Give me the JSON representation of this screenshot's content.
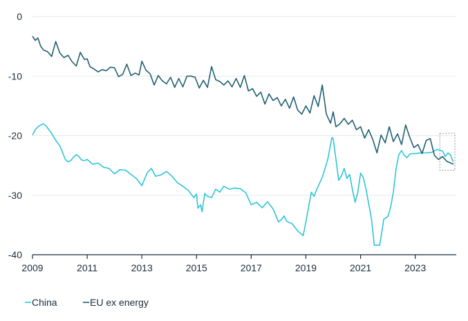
{
  "chart_data": {
    "type": "line",
    "title": "",
    "xlabel": "",
    "ylabel": "",
    "xlim": [
      2009,
      2024.5
    ],
    "ylim": [
      -40,
      0
    ],
    "grid": true,
    "legend": "bottom-left",
    "x_ticks": [
      {
        "value": 2009,
        "label": "2009"
      },
      {
        "value": 2011,
        "label": "2011"
      },
      {
        "value": 2013,
        "label": "2013"
      },
      {
        "value": 2015,
        "label": "2015"
      },
      {
        "value": 2017,
        "label": "2017"
      },
      {
        "value": 2019,
        "label": "2019"
      },
      {
        "value": 2021,
        "label": "2021"
      },
      {
        "value": 2023,
        "label": "2023"
      }
    ],
    "y_ticks": [
      {
        "value": 0,
        "label": "0"
      },
      {
        "value": -10,
        "label": "-10"
      },
      {
        "value": -20,
        "label": "-20"
      },
      {
        "value": -30,
        "label": "-30"
      },
      {
        "value": -40,
        "label": "-40"
      }
    ],
    "highlight_box": {
      "x0": 2023.9,
      "x1": 2024.45,
      "y0": -19.6,
      "y1": -25.8
    },
    "series": [
      {
        "name": "China",
        "color": "#2cc4d8",
        "x": [
          2009.0,
          2009.1,
          2009.2,
          2009.3,
          2009.4,
          2009.5,
          2009.6,
          2009.7,
          2009.8,
          2009.9,
          2010.0,
          2010.1,
          2010.2,
          2010.3,
          2010.4,
          2010.5,
          2010.6,
          2010.7,
          2010.8,
          2010.9,
          2011.0,
          2011.2,
          2011.4,
          2011.6,
          2011.8,
          2012.0,
          2012.2,
          2012.4,
          2012.6,
          2012.8,
          2013.0,
          2013.2,
          2013.35,
          2013.5,
          2013.7,
          2013.9,
          2014.1,
          2014.3,
          2014.5,
          2014.7,
          2014.9,
          2015.0,
          2015.05,
          2015.15,
          2015.2,
          2015.3,
          2015.4,
          2015.55,
          2015.7,
          2015.85,
          2016.0,
          2016.2,
          2016.4,
          2016.6,
          2016.8,
          2017.0,
          2017.2,
          2017.4,
          2017.6,
          2017.8,
          2018.0,
          2018.1,
          2018.2,
          2018.3,
          2018.5,
          2018.7,
          2018.9,
          2019.0,
          2019.1,
          2019.2,
          2019.3,
          2019.4,
          2019.6,
          2019.8,
          2019.95,
          2020.0,
          2020.1,
          2020.2,
          2020.3,
          2020.4,
          2020.5,
          2020.6,
          2020.7,
          2020.8,
          2020.9,
          2021.0,
          2021.1,
          2021.2,
          2021.3,
          2021.4,
          2021.5,
          2021.7,
          2021.85,
          2022.0,
          2022.1,
          2022.2,
          2022.3,
          2022.4,
          2022.5,
          2022.6,
          2022.7,
          2022.8,
          2022.9,
          2023.0,
          2023.2,
          2023.4,
          2023.6,
          2023.8,
          2024.0,
          2024.1,
          2024.2,
          2024.3,
          2024.35,
          2024.4
        ],
        "values": [
          -19.9,
          -19.0,
          -18.5,
          -18.2,
          -18.0,
          -18.4,
          -19.0,
          -19.6,
          -20.4,
          -21.1,
          -21.7,
          -22.8,
          -24.0,
          -24.4,
          -24.2,
          -23.6,
          -23.2,
          -23.5,
          -24.1,
          -24.2,
          -24.0,
          -24.8,
          -24.6,
          -25.3,
          -25.5,
          -26.4,
          -25.7,
          -25.8,
          -26.5,
          -27.2,
          -28.4,
          -26.2,
          -25.5,
          -26.8,
          -26.6,
          -26.0,
          -26.8,
          -27.9,
          -28.5,
          -29.2,
          -30.4,
          -29.8,
          -32.2,
          -31.6,
          -32.8,
          -29.7,
          -30.2,
          -30.4,
          -29.0,
          -29.5,
          -28.5,
          -29.0,
          -28.8,
          -28.9,
          -29.6,
          -31.6,
          -31.2,
          -32.1,
          -31.1,
          -32.3,
          -34.5,
          -34.1,
          -33.5,
          -34.4,
          -34.8,
          -36.0,
          -36.8,
          -34.5,
          -32.0,
          -29.5,
          -30.2,
          -29.0,
          -27.0,
          -24.0,
          -20.3,
          -20.5,
          -24.0,
          -27.5,
          -26.8,
          -25.5,
          -27.2,
          -26.5,
          -29.0,
          -31.2,
          -29.5,
          -26.3,
          -27.0,
          -29.0,
          -31.5,
          -34.0,
          -38.4,
          -38.4,
          -34.0,
          -33.6,
          -32.0,
          -29.5,
          -25.5,
          -23.2,
          -22.5,
          -23.3,
          -23.7,
          -23.1,
          -23.0,
          -23.0,
          -22.9,
          -22.9,
          -22.8,
          -22.3,
          -22.6,
          -23.5,
          -22.9,
          -23.3,
          -24.0,
          -24.4
        ]
      },
      {
        "name": "EU ex energy",
        "color": "#1f5f70",
        "x": [
          2009.0,
          2009.1,
          2009.2,
          2009.3,
          2009.4,
          2009.55,
          2009.7,
          2009.85,
          2010.0,
          2010.15,
          2010.3,
          2010.45,
          2010.6,
          2010.75,
          2010.9,
          2011.0,
          2011.1,
          2011.25,
          2011.4,
          2011.55,
          2011.7,
          2011.85,
          2012.0,
          2012.15,
          2012.3,
          2012.45,
          2012.6,
          2012.75,
          2012.9,
          2013.0,
          2013.15,
          2013.3,
          2013.45,
          2013.6,
          2013.75,
          2013.9,
          2014.05,
          2014.2,
          2014.35,
          2014.5,
          2014.65,
          2014.8,
          2014.95,
          2015.1,
          2015.25,
          2015.4,
          2015.55,
          2015.7,
          2015.85,
          2016.0,
          2016.15,
          2016.3,
          2016.45,
          2016.6,
          2016.75,
          2016.9,
          2017.05,
          2017.2,
          2017.35,
          2017.5,
          2017.65,
          2017.8,
          2017.95,
          2018.1,
          2018.25,
          2018.4,
          2018.55,
          2018.7,
          2018.85,
          2019.0,
          2019.15,
          2019.3,
          2019.45,
          2019.6,
          2019.75,
          2019.9,
          2020.0,
          2020.1,
          2020.25,
          2020.4,
          2020.55,
          2020.7,
          2020.85,
          2021.0,
          2021.15,
          2021.3,
          2021.45,
          2021.6,
          2021.75,
          2021.9,
          2022.05,
          2022.2,
          2022.35,
          2022.5,
          2022.65,
          2022.8,
          2022.95,
          2023.1,
          2023.25,
          2023.4,
          2023.55,
          2023.7,
          2023.85,
          2024.0,
          2024.15,
          2024.3,
          2024.4
        ],
        "values": [
          -3.3,
          -4.0,
          -3.6,
          -5.0,
          -5.6,
          -5.9,
          -6.7,
          -4.2,
          -6.1,
          -6.9,
          -6.5,
          -7.6,
          -8.3,
          -6.0,
          -7.2,
          -7.1,
          -8.4,
          -8.8,
          -9.3,
          -8.9,
          -9.1,
          -8.5,
          -8.6,
          -10.1,
          -9.7,
          -8.0,
          -9.9,
          -9.5,
          -9.8,
          -7.5,
          -9.0,
          -9.6,
          -11.5,
          -9.9,
          -10.8,
          -11.3,
          -10.2,
          -11.9,
          -10.4,
          -11.8,
          -10.0,
          -10.0,
          -10.2,
          -12.0,
          -10.7,
          -11.9,
          -8.4,
          -10.6,
          -10.9,
          -11.5,
          -10.8,
          -11.8,
          -10.4,
          -11.9,
          -9.9,
          -12.5,
          -12.1,
          -13.4,
          -12.7,
          -14.7,
          -13.0,
          -14.1,
          -13.6,
          -15.0,
          -13.9,
          -15.4,
          -13.5,
          -15.7,
          -16.4,
          -15.0,
          -16.2,
          -13.3,
          -15.1,
          -11.5,
          -16.4,
          -17.9,
          -16.0,
          -18.5,
          -18.0,
          -17.1,
          -18.1,
          -17.4,
          -19.0,
          -18.5,
          -20.4,
          -19.0,
          -20.7,
          -22.9,
          -19.9,
          -21.2,
          -18.5,
          -21.0,
          -19.7,
          -21.5,
          -18.2,
          -20.3,
          -22.0,
          -21.5,
          -23.0,
          -20.8,
          -20.5,
          -23.3,
          -24.0,
          -23.5,
          -24.3,
          -24.6,
          -24.8
        ]
      }
    ]
  }
}
